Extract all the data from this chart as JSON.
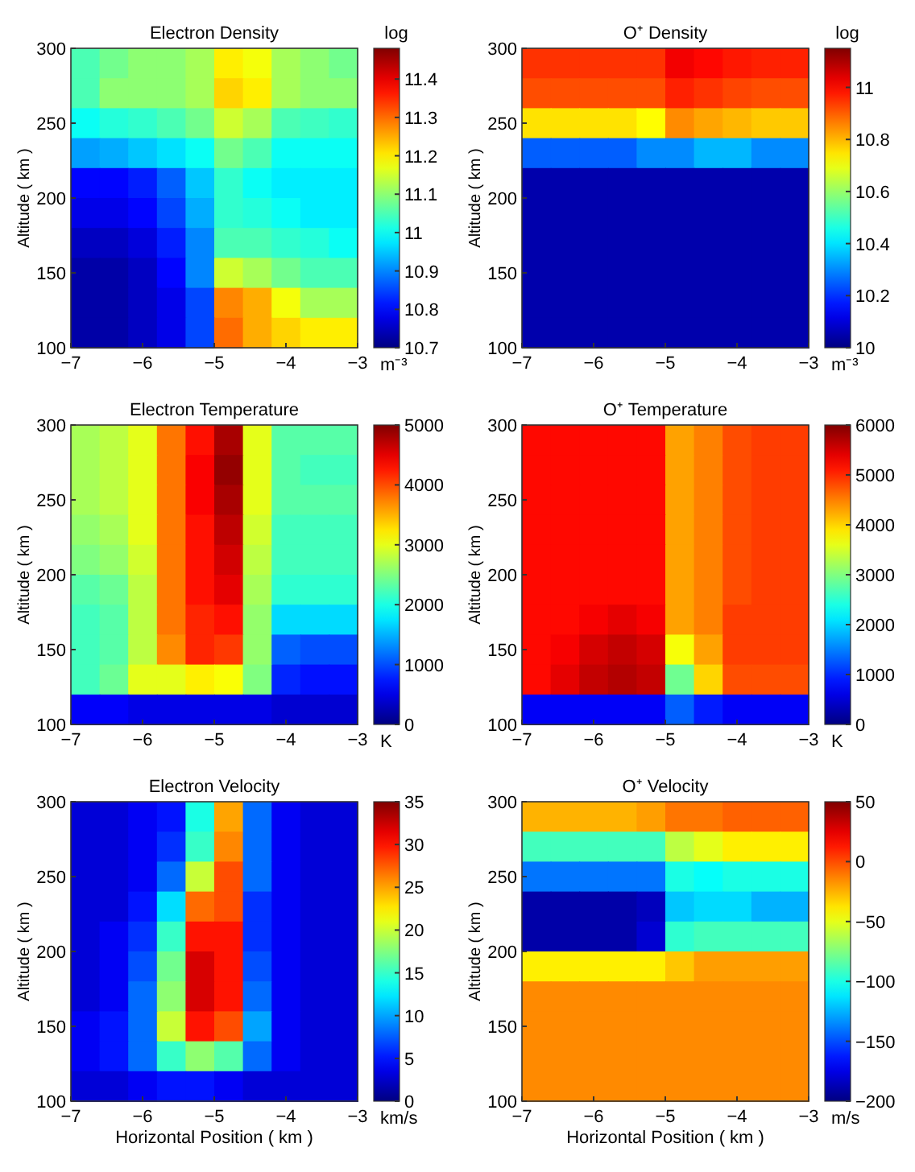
{
  "chart_data": [
    {
      "type": "heatmap",
      "title": "Electron Density",
      "ylabel": "Altitude ( km )",
      "clabel": "m⁻³",
      "annotations": [
        "log"
      ],
      "x": [
        -6.8,
        -6.4,
        -6.0,
        -5.6,
        -5.2,
        -4.8,
        -4.4,
        -4.0,
        -3.6,
        -3.2
      ],
      "y": [
        290,
        270,
        250,
        230,
        210,
        190,
        170,
        150,
        130,
        110
      ],
      "xlim": [
        -7,
        -3
      ],
      "xticks": [
        -7,
        -6,
        -5,
        -4,
        -3
      ],
      "ylim": [
        100,
        300
      ],
      "yticks": [
        100,
        150,
        200,
        250,
        300
      ],
      "clim": [
        10.7,
        11.48
      ],
      "cticks": [
        10.7,
        10.8,
        10.9,
        11,
        11.1,
        11.2,
        11.3,
        11.4
      ],
      "cells": [
        [
          11.05,
          11.08,
          11.1,
          11.1,
          11.12,
          11.2,
          11.18,
          11.12,
          11.1,
          11.08
        ],
        [
          11.05,
          11.1,
          11.1,
          11.1,
          11.12,
          11.22,
          11.2,
          11.12,
          11.1,
          11.1
        ],
        [
          11.0,
          11.02,
          11.03,
          11.05,
          11.08,
          11.15,
          11.12,
          11.05,
          11.04,
          11.03
        ],
        [
          10.92,
          10.93,
          10.95,
          10.97,
          11.0,
          11.08,
          11.05,
          11.0,
          11.0,
          11.0
        ],
        [
          10.8,
          10.8,
          10.82,
          10.87,
          10.95,
          11.03,
          11.0,
          10.98,
          10.98,
          10.98
        ],
        [
          10.78,
          10.78,
          10.8,
          10.85,
          10.93,
          11.03,
          11.02,
          11.0,
          10.98,
          10.98
        ],
        [
          10.75,
          10.75,
          10.77,
          10.82,
          10.9,
          11.05,
          11.05,
          11.03,
          11.02,
          11.0
        ],
        [
          10.73,
          10.73,
          10.75,
          10.8,
          10.9,
          11.15,
          11.12,
          11.08,
          11.05,
          11.05
        ],
        [
          10.73,
          10.73,
          10.75,
          10.78,
          10.85,
          11.28,
          11.25,
          11.18,
          11.12,
          11.12
        ],
        [
          10.73,
          10.73,
          10.75,
          10.78,
          10.85,
          11.3,
          11.25,
          11.22,
          11.2,
          11.2
        ]
      ]
    },
    {
      "type": "heatmap",
      "title": "O⁺ Density",
      "ylabel": "Altitude ( km )",
      "clabel": "m⁻³",
      "annotations": [
        "log"
      ],
      "x": [
        -6.8,
        -6.4,
        -6.0,
        -5.6,
        -5.2,
        -4.8,
        -4.4,
        -4.0,
        -3.6,
        -3.2
      ],
      "y": [
        290,
        270,
        250,
        230,
        210,
        190,
        170,
        150,
        130,
        110
      ],
      "xlim": [
        -7,
        -3
      ],
      "xticks": [
        -7,
        -6,
        -5,
        -4,
        -3
      ],
      "ylim": [
        100,
        300
      ],
      "yticks": [
        100,
        150,
        200,
        250,
        300
      ],
      "clim": [
        10,
        11.15
      ],
      "cticks": [
        10,
        10.2,
        10.4,
        10.6,
        10.8,
        11
      ],
      "cells": [
        [
          10.95,
          10.95,
          10.95,
          10.95,
          10.95,
          11.02,
          11.0,
          10.98,
          10.97,
          10.97
        ],
        [
          10.92,
          10.92,
          10.92,
          10.92,
          10.92,
          10.97,
          10.95,
          10.93,
          10.92,
          10.92
        ],
        [
          10.75,
          10.75,
          10.75,
          10.75,
          10.72,
          10.85,
          10.82,
          10.8,
          10.78,
          10.78
        ],
        [
          10.25,
          10.25,
          10.25,
          10.25,
          10.3,
          10.3,
          10.35,
          10.35,
          10.3,
          10.3
        ],
        [
          10.05,
          10.05,
          10.05,
          10.05,
          10.05,
          10.05,
          10.05,
          10.05,
          10.05,
          10.05
        ],
        [
          10.05,
          10.05,
          10.05,
          10.05,
          10.05,
          10.05,
          10.05,
          10.05,
          10.05,
          10.05
        ],
        [
          10.05,
          10.05,
          10.05,
          10.05,
          10.05,
          10.05,
          10.05,
          10.05,
          10.05,
          10.05
        ],
        [
          10.05,
          10.05,
          10.05,
          10.05,
          10.05,
          10.05,
          10.05,
          10.05,
          10.05,
          10.05
        ],
        [
          10.05,
          10.05,
          10.05,
          10.05,
          10.05,
          10.05,
          10.05,
          10.05,
          10.05,
          10.05
        ],
        [
          10.05,
          10.05,
          10.05,
          10.05,
          10.05,
          10.05,
          10.05,
          10.05,
          10.05,
          10.05
        ]
      ]
    },
    {
      "type": "heatmap",
      "title": "Electron Temperature",
      "ylabel": "Altitude ( km )",
      "clabel": "K",
      "x": [
        -6.8,
        -6.4,
        -6.0,
        -5.6,
        -5.2,
        -4.8,
        -4.4,
        -4.0,
        -3.6,
        -3.2
      ],
      "y": [
        290,
        270,
        250,
        230,
        210,
        190,
        170,
        150,
        130,
        110
      ],
      "xlim": [
        -7,
        -3
      ],
      "xticks": [
        -7,
        -6,
        -5,
        -4,
        -3
      ],
      "ylim": [
        100,
        300
      ],
      "yticks": [
        100,
        150,
        200,
        250,
        300
      ],
      "clim": [
        0,
        5000
      ],
      "cticks": [
        0,
        1000,
        2000,
        3000,
        4000,
        5000
      ],
      "cells": [
        [
          2700,
          2800,
          3000,
          3800,
          4300,
          4800,
          3000,
          2300,
          2300,
          2300
        ],
        [
          2700,
          2800,
          3000,
          3800,
          4400,
          4900,
          3000,
          2300,
          2200,
          2200
        ],
        [
          2700,
          2800,
          3000,
          3800,
          4400,
          4800,
          3000,
          2300,
          2300,
          2300
        ],
        [
          2600,
          2700,
          3000,
          3800,
          4300,
          4700,
          2900,
          2200,
          2200,
          2200
        ],
        [
          2500,
          2600,
          2900,
          3800,
          4300,
          4600,
          2800,
          2200,
          2200,
          2200
        ],
        [
          2300,
          2400,
          2800,
          3800,
          4300,
          4500,
          2700,
          2100,
          2100,
          2100
        ],
        [
          2200,
          2300,
          2800,
          3800,
          4200,
          4300,
          2600,
          1700,
          1700,
          1700
        ],
        [
          2200,
          2300,
          2800,
          3700,
          4200,
          4100,
          2600,
          1100,
          1000,
          1000
        ],
        [
          2200,
          2400,
          3000,
          3000,
          3200,
          3100,
          2500,
          800,
          700,
          700
        ],
        [
          600,
          600,
          500,
          500,
          500,
          500,
          500,
          400,
          400,
          400
        ]
      ]
    },
    {
      "type": "heatmap",
      "title": "O⁺ Temperature",
      "ylabel": "Altitude ( km )",
      "clabel": "K",
      "x": [
        -6.8,
        -6.4,
        -6.0,
        -5.6,
        -5.2,
        -4.8,
        -4.4,
        -4.0,
        -3.6,
        -3.2
      ],
      "y": [
        290,
        270,
        250,
        230,
        210,
        190,
        170,
        150,
        130,
        110
      ],
      "xlim": [
        -7,
        -3
      ],
      "xticks": [
        -7,
        -6,
        -5,
        -4,
        -3
      ],
      "ylim": [
        100,
        300
      ],
      "yticks": [
        100,
        150,
        200,
        250,
        300
      ],
      "clim": [
        0,
        6000
      ],
      "cticks": [
        0,
        1000,
        2000,
        3000,
        4000,
        5000,
        6000
      ],
      "cells": [
        [
          5200,
          5200,
          5200,
          5200,
          5200,
          4300,
          4500,
          4800,
          4900,
          4900
        ],
        [
          5200,
          5200,
          5200,
          5200,
          5200,
          4300,
          4500,
          4800,
          4900,
          4900
        ],
        [
          5200,
          5200,
          5200,
          5200,
          5200,
          4300,
          4500,
          4800,
          4900,
          4900
        ],
        [
          5200,
          5200,
          5200,
          5200,
          5200,
          4300,
          4500,
          4800,
          4900,
          4900
        ],
        [
          5200,
          5200,
          5200,
          5200,
          5200,
          4300,
          4500,
          4800,
          4900,
          4900
        ],
        [
          5200,
          5200,
          5200,
          5200,
          5200,
          4300,
          4500,
          4800,
          4900,
          4900
        ],
        [
          5200,
          5200,
          5300,
          5400,
          5300,
          4300,
          4500,
          4900,
          4900,
          4900
        ],
        [
          5200,
          5300,
          5500,
          5600,
          5500,
          3700,
          4300,
          4900,
          4900,
          4900
        ],
        [
          5200,
          5400,
          5600,
          5700,
          5600,
          2900,
          4000,
          4800,
          4800,
          4800
        ],
        [
          700,
          700,
          700,
          700,
          700,
          1300,
          900,
          700,
          700,
          700
        ]
      ]
    },
    {
      "type": "heatmap",
      "title": "Electron Velocity",
      "xlabel": "Horizontal Position ( km )",
      "ylabel": "Altitude ( km )",
      "clabel": "km/s",
      "x": [
        -6.8,
        -6.4,
        -6.0,
        -5.6,
        -5.2,
        -4.8,
        -4.4,
        -4.0,
        -3.6,
        -3.2
      ],
      "y": [
        290,
        270,
        250,
        230,
        210,
        190,
        170,
        150,
        130,
        110
      ],
      "xlim": [
        -7,
        -3
      ],
      "xticks": [
        -7,
        -6,
        -5,
        -4,
        -3
      ],
      "ylim": [
        100,
        300
      ],
      "yticks": [
        100,
        150,
        200,
        250,
        300
      ],
      "clim": [
        0,
        35
      ],
      "cticks": [
        0,
        5,
        10,
        15,
        20,
        25,
        30,
        35
      ],
      "cells": [
        [
          3,
          3,
          4,
          5,
          14,
          25,
          8,
          4,
          3,
          3
        ],
        [
          3,
          3,
          4,
          6,
          15,
          26,
          8,
          4,
          3,
          3
        ],
        [
          3,
          3,
          4,
          8,
          20,
          28,
          8,
          4,
          3,
          3
        ],
        [
          3,
          3,
          5,
          12,
          27,
          28,
          6,
          4,
          3,
          3
        ],
        [
          3,
          4,
          6,
          15,
          30,
          30,
          6,
          4,
          3,
          3
        ],
        [
          3,
          4,
          7,
          17,
          32,
          30,
          7,
          4,
          3,
          3
        ],
        [
          3,
          4,
          8,
          18,
          32,
          30,
          8,
          4,
          3,
          3
        ],
        [
          4,
          5,
          8,
          20,
          30,
          28,
          10,
          4,
          3,
          3
        ],
        [
          4,
          5,
          8,
          15,
          18,
          16,
          8,
          4,
          3,
          3
        ],
        [
          3,
          3,
          4,
          5,
          5,
          4,
          3,
          3,
          3,
          3
        ]
      ]
    },
    {
      "type": "heatmap",
      "title": "O⁺ Velocity",
      "xlabel": "Horizontal Position ( km )",
      "ylabel": "Altitude ( km )",
      "clabel": "m/s",
      "x": [
        -6.8,
        -6.4,
        -6.0,
        -5.6,
        -5.2,
        -4.8,
        -4.4,
        -4.0,
        -3.6,
        -3.2
      ],
      "y": [
        290,
        270,
        250,
        230,
        210,
        190,
        170,
        150,
        130,
        110
      ],
      "xlim": [
        -7,
        -3
      ],
      "xticks": [
        -7,
        -6,
        -5,
        -4,
        -3
      ],
      "ylim": [
        100,
        300
      ],
      "yticks": [
        100,
        150,
        200,
        250,
        300
      ],
      "clim": [
        -200,
        50
      ],
      "cticks": [
        -200,
        -150,
        -100,
        -50,
        0,
        50
      ],
      "cells": [
        [
          -25,
          -25,
          -25,
          -25,
          -20,
          -10,
          -10,
          -5,
          -5,
          -5
        ],
        [
          -90,
          -90,
          -90,
          -90,
          -90,
          -60,
          -50,
          -40,
          -40,
          -40
        ],
        [
          -140,
          -140,
          -140,
          -140,
          -140,
          -100,
          -105,
          -100,
          -100,
          -100
        ],
        [
          -190,
          -190,
          -190,
          -190,
          -185,
          -120,
          -115,
          -115,
          -125,
          -125
        ],
        [
          -190,
          -190,
          -190,
          -190,
          -180,
          -95,
          -90,
          -90,
          -90,
          -90
        ],
        [
          -40,
          -40,
          -40,
          -40,
          -40,
          -30,
          -20,
          -20,
          -20,
          -20
        ],
        [
          -15,
          -15,
          -15,
          -15,
          -15,
          -15,
          -15,
          -15,
          -15,
          -15
        ],
        [
          -15,
          -15,
          -15,
          -15,
          -15,
          -15,
          -15,
          -15,
          -15,
          -15
        ],
        [
          -15,
          -15,
          -15,
          -15,
          -15,
          -15,
          -15,
          -15,
          -15,
          -15
        ],
        [
          -15,
          -15,
          -15,
          -15,
          -15,
          -15,
          -15,
          -15,
          -15,
          -15
        ]
      ]
    }
  ]
}
